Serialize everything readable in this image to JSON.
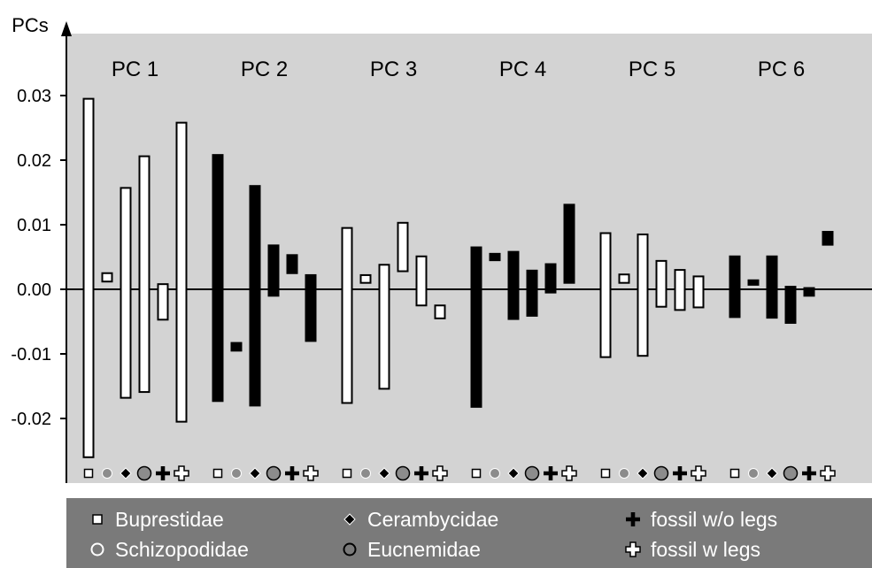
{
  "chart_data": {
    "type": "bar",
    "ylabel": "PCs",
    "yticks": [
      0.03,
      0.02,
      0.01,
      0.0,
      -0.01,
      -0.02
    ],
    "ytick_labels": [
      "0.03",
      "0.02",
      "0.01",
      "0.00",
      "-0.01",
      "-0.02"
    ],
    "ylim": [
      -0.0295,
      0.039
    ],
    "grid": false,
    "legend_position": "bottom",
    "groups": [
      "PC 1",
      "PC 2",
      "PC 3",
      "PC 4",
      "PC 5",
      "PC 6"
    ],
    "categories": [
      "Buprestidae",
      "Schizopodidae",
      "Cerambycidae",
      "Eucnemidae",
      "fossil w/o legs",
      "fossil w legs"
    ],
    "category_symbols": [
      "square",
      "circle",
      "diamond",
      "big-circle",
      "plus",
      "outlined-plus"
    ],
    "group_fill": [
      "white",
      "black",
      "white",
      "black",
      "white",
      "black"
    ],
    "series": [
      {
        "name": "PC 1",
        "ranges": [
          [
            -0.026,
            0.0295
          ],
          [
            0.0012,
            0.0025
          ],
          [
            -0.0168,
            0.0157
          ],
          [
            -0.0159,
            0.0206
          ],
          [
            -0.0047,
            0.0008
          ],
          [
            -0.0205,
            0.0258
          ]
        ]
      },
      {
        "name": "PC 2",
        "ranges": [
          [
            -0.0173,
            0.0208
          ],
          [
            -0.0095,
            -0.0083
          ],
          [
            -0.018,
            0.016
          ],
          [
            -0.001,
            0.0068
          ],
          [
            0.0025,
            0.0053
          ],
          [
            -0.008,
            0.0022
          ]
        ]
      },
      {
        "name": "PC 3",
        "ranges": [
          [
            -0.0176,
            0.0095
          ],
          [
            0.001,
            0.0022
          ],
          [
            -0.0154,
            0.0038
          ],
          [
            0.0028,
            0.0103
          ],
          [
            -0.0025,
            0.0051
          ],
          [
            -0.0045,
            -0.0025
          ]
        ]
      },
      {
        "name": "PC 4",
        "ranges": [
          [
            -0.0182,
            0.0065
          ],
          [
            0.0045,
            0.0055
          ],
          [
            -0.0046,
            0.0058
          ],
          [
            -0.0041,
            0.0029
          ],
          [
            -0.0005,
            0.0039
          ],
          [
            0.001,
            0.0131
          ]
        ]
      },
      {
        "name": "PC 5",
        "ranges": [
          [
            -0.0105,
            0.0087
          ],
          [
            0.001,
            0.0023
          ],
          [
            -0.0103,
            0.0085
          ],
          [
            -0.0027,
            0.0044
          ],
          [
            -0.0032,
            0.003
          ],
          [
            -0.0028,
            0.002
          ]
        ]
      },
      {
        "name": "PC 6",
        "ranges": [
          [
            -0.0043,
            0.0051
          ],
          [
            0.0007,
            0.0014
          ],
          [
            -0.0044,
            0.0051
          ],
          [
            -0.0052,
            0.0004
          ],
          [
            -0.001,
            0.0002
          ],
          [
            0.0069,
            0.0089
          ]
        ]
      }
    ],
    "legend": [
      {
        "label": "Buprestidae",
        "symbol": "square"
      },
      {
        "label": "Cerambycidae",
        "symbol": "diamond"
      },
      {
        "label": "fossil w/o legs",
        "symbol": "plus"
      },
      {
        "label": "Schizopodidae",
        "symbol": "circle"
      },
      {
        "label": "Eucnemidae",
        "symbol": "big-circle"
      },
      {
        "label": "fossil w legs",
        "symbol": "outlined-plus"
      }
    ]
  },
  "colors": {
    "plot_background": "#d3d3d3",
    "legend_background": "#7a7a7a",
    "gray_marker": "#8c8c8c",
    "black": "#000000",
    "white": "#ffffff"
  }
}
